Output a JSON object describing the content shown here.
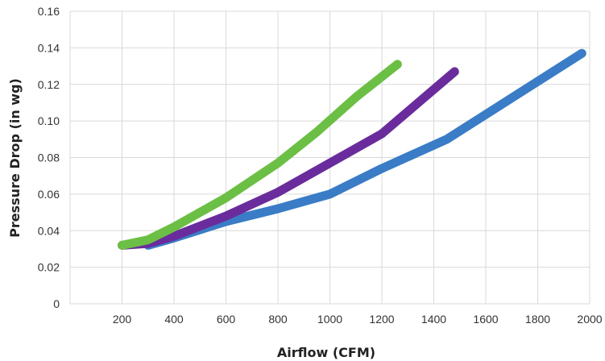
{
  "chart_data": {
    "type": "line",
    "title": "",
    "xlabel": "Airflow (CFM)",
    "ylabel": "Pressure Drop (in wg)",
    "xlim": [
      0,
      2000
    ],
    "ylim": [
      0,
      0.16
    ],
    "grid": true,
    "legend": "none",
    "x_ticks": [
      {
        "value": 200,
        "label": "200"
      },
      {
        "value": 400,
        "label": "400"
      },
      {
        "value": 600,
        "label": "600"
      },
      {
        "value": 800,
        "label": "800"
      },
      {
        "value": 1000,
        "label": "1000"
      },
      {
        "value": 1200,
        "label": "1200"
      },
      {
        "value": 1400,
        "label": "1400"
      },
      {
        "value": 1600,
        "label": "1600"
      },
      {
        "value": 1800,
        "label": "1800"
      },
      {
        "value": 2000,
        "label": "2000"
      }
    ],
    "y_ticks": [
      {
        "value": 0,
        "label": "0"
      },
      {
        "value": 0.02,
        "label": "0.02"
      },
      {
        "value": 0.04,
        "label": "0.04"
      },
      {
        "value": 0.06,
        "label": "0.06"
      },
      {
        "value": 0.08,
        "label": "0.08"
      },
      {
        "value": 0.1,
        "label": "0.10"
      },
      {
        "value": 0.12,
        "label": "0.12"
      },
      {
        "value": 0.14,
        "label": "0.14"
      },
      {
        "value": 0.16,
        "label": "0.16"
      }
    ],
    "series": [
      {
        "color": "#3a7cc6",
        "points": [
          [
            300,
            0.032
          ],
          [
            400,
            0.036
          ],
          [
            600,
            0.045
          ],
          [
            800,
            0.052
          ],
          [
            1000,
            0.06
          ],
          [
            1200,
            0.074
          ],
          [
            1450,
            0.09
          ],
          [
            1970,
            0.137
          ]
        ]
      },
      {
        "color": "#6a2c9c",
        "points": [
          [
            200,
            0.032
          ],
          [
            300,
            0.033
          ],
          [
            400,
            0.037
          ],
          [
            600,
            0.048
          ],
          [
            800,
            0.061
          ],
          [
            1000,
            0.077
          ],
          [
            1200,
            0.093
          ],
          [
            1480,
            0.127
          ]
        ]
      },
      {
        "color": "#6cbf45",
        "points": [
          [
            200,
            0.032
          ],
          [
            300,
            0.035
          ],
          [
            400,
            0.042
          ],
          [
            600,
            0.058
          ],
          [
            800,
            0.077
          ],
          [
            950,
            0.094
          ],
          [
            1100,
            0.113
          ],
          [
            1260,
            0.131
          ]
        ]
      }
    ]
  }
}
